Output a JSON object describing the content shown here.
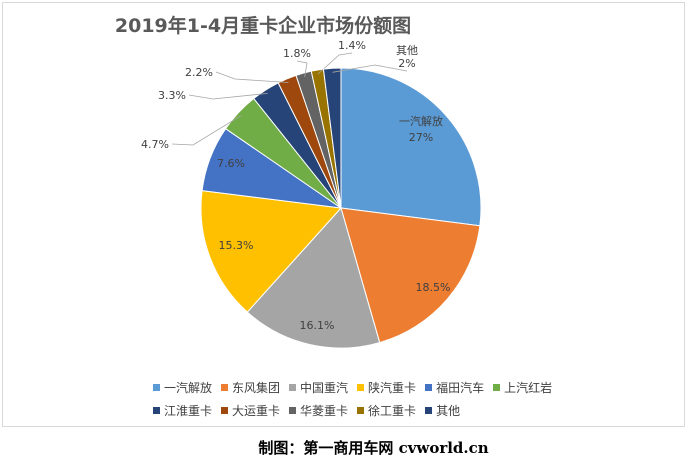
{
  "chart_data": {
    "type": "pie",
    "title": "2019年1-4月重卡企业市场份额图",
    "slices": [
      {
        "name": "一汽解放",
        "value": 27,
        "label": "27%",
        "color": "#5B9BD5"
      },
      {
        "name": "东风集团",
        "value": 18.5,
        "label": "18.5%",
        "color": "#ED7D31"
      },
      {
        "name": "中国重汽",
        "value": 16.1,
        "label": "16.1%",
        "color": "#A5A5A5"
      },
      {
        "name": "陕汽重卡",
        "value": 15.3,
        "label": "15.3%",
        "color": "#FFC000"
      },
      {
        "name": "福田汽车",
        "value": 7.6,
        "label": "7.6%",
        "color": "#4472C4"
      },
      {
        "name": "上汽红岩",
        "value": 4.7,
        "label": "4.7%",
        "color": "#70AD47"
      },
      {
        "name": "江淮重卡",
        "value": 3.3,
        "label": "3.3%",
        "color": "#264478"
      },
      {
        "name": "大运重卡",
        "value": 2.2,
        "label": "2.2%",
        "color": "#9E480E"
      },
      {
        "name": "华菱重卡",
        "value": 1.8,
        "label": "1.8%",
        "color": "#636363"
      },
      {
        "name": "徐工重卡",
        "value": 1.4,
        "label": "1.4%",
        "color": "#997300"
      },
      {
        "name": "其他",
        "value": 2,
        "label": "2%",
        "color": "#264478"
      }
    ],
    "legend_position": "bottom"
  },
  "footer": {
    "label": "制图：第一商用车网",
    "site": "cvworld.cn"
  }
}
